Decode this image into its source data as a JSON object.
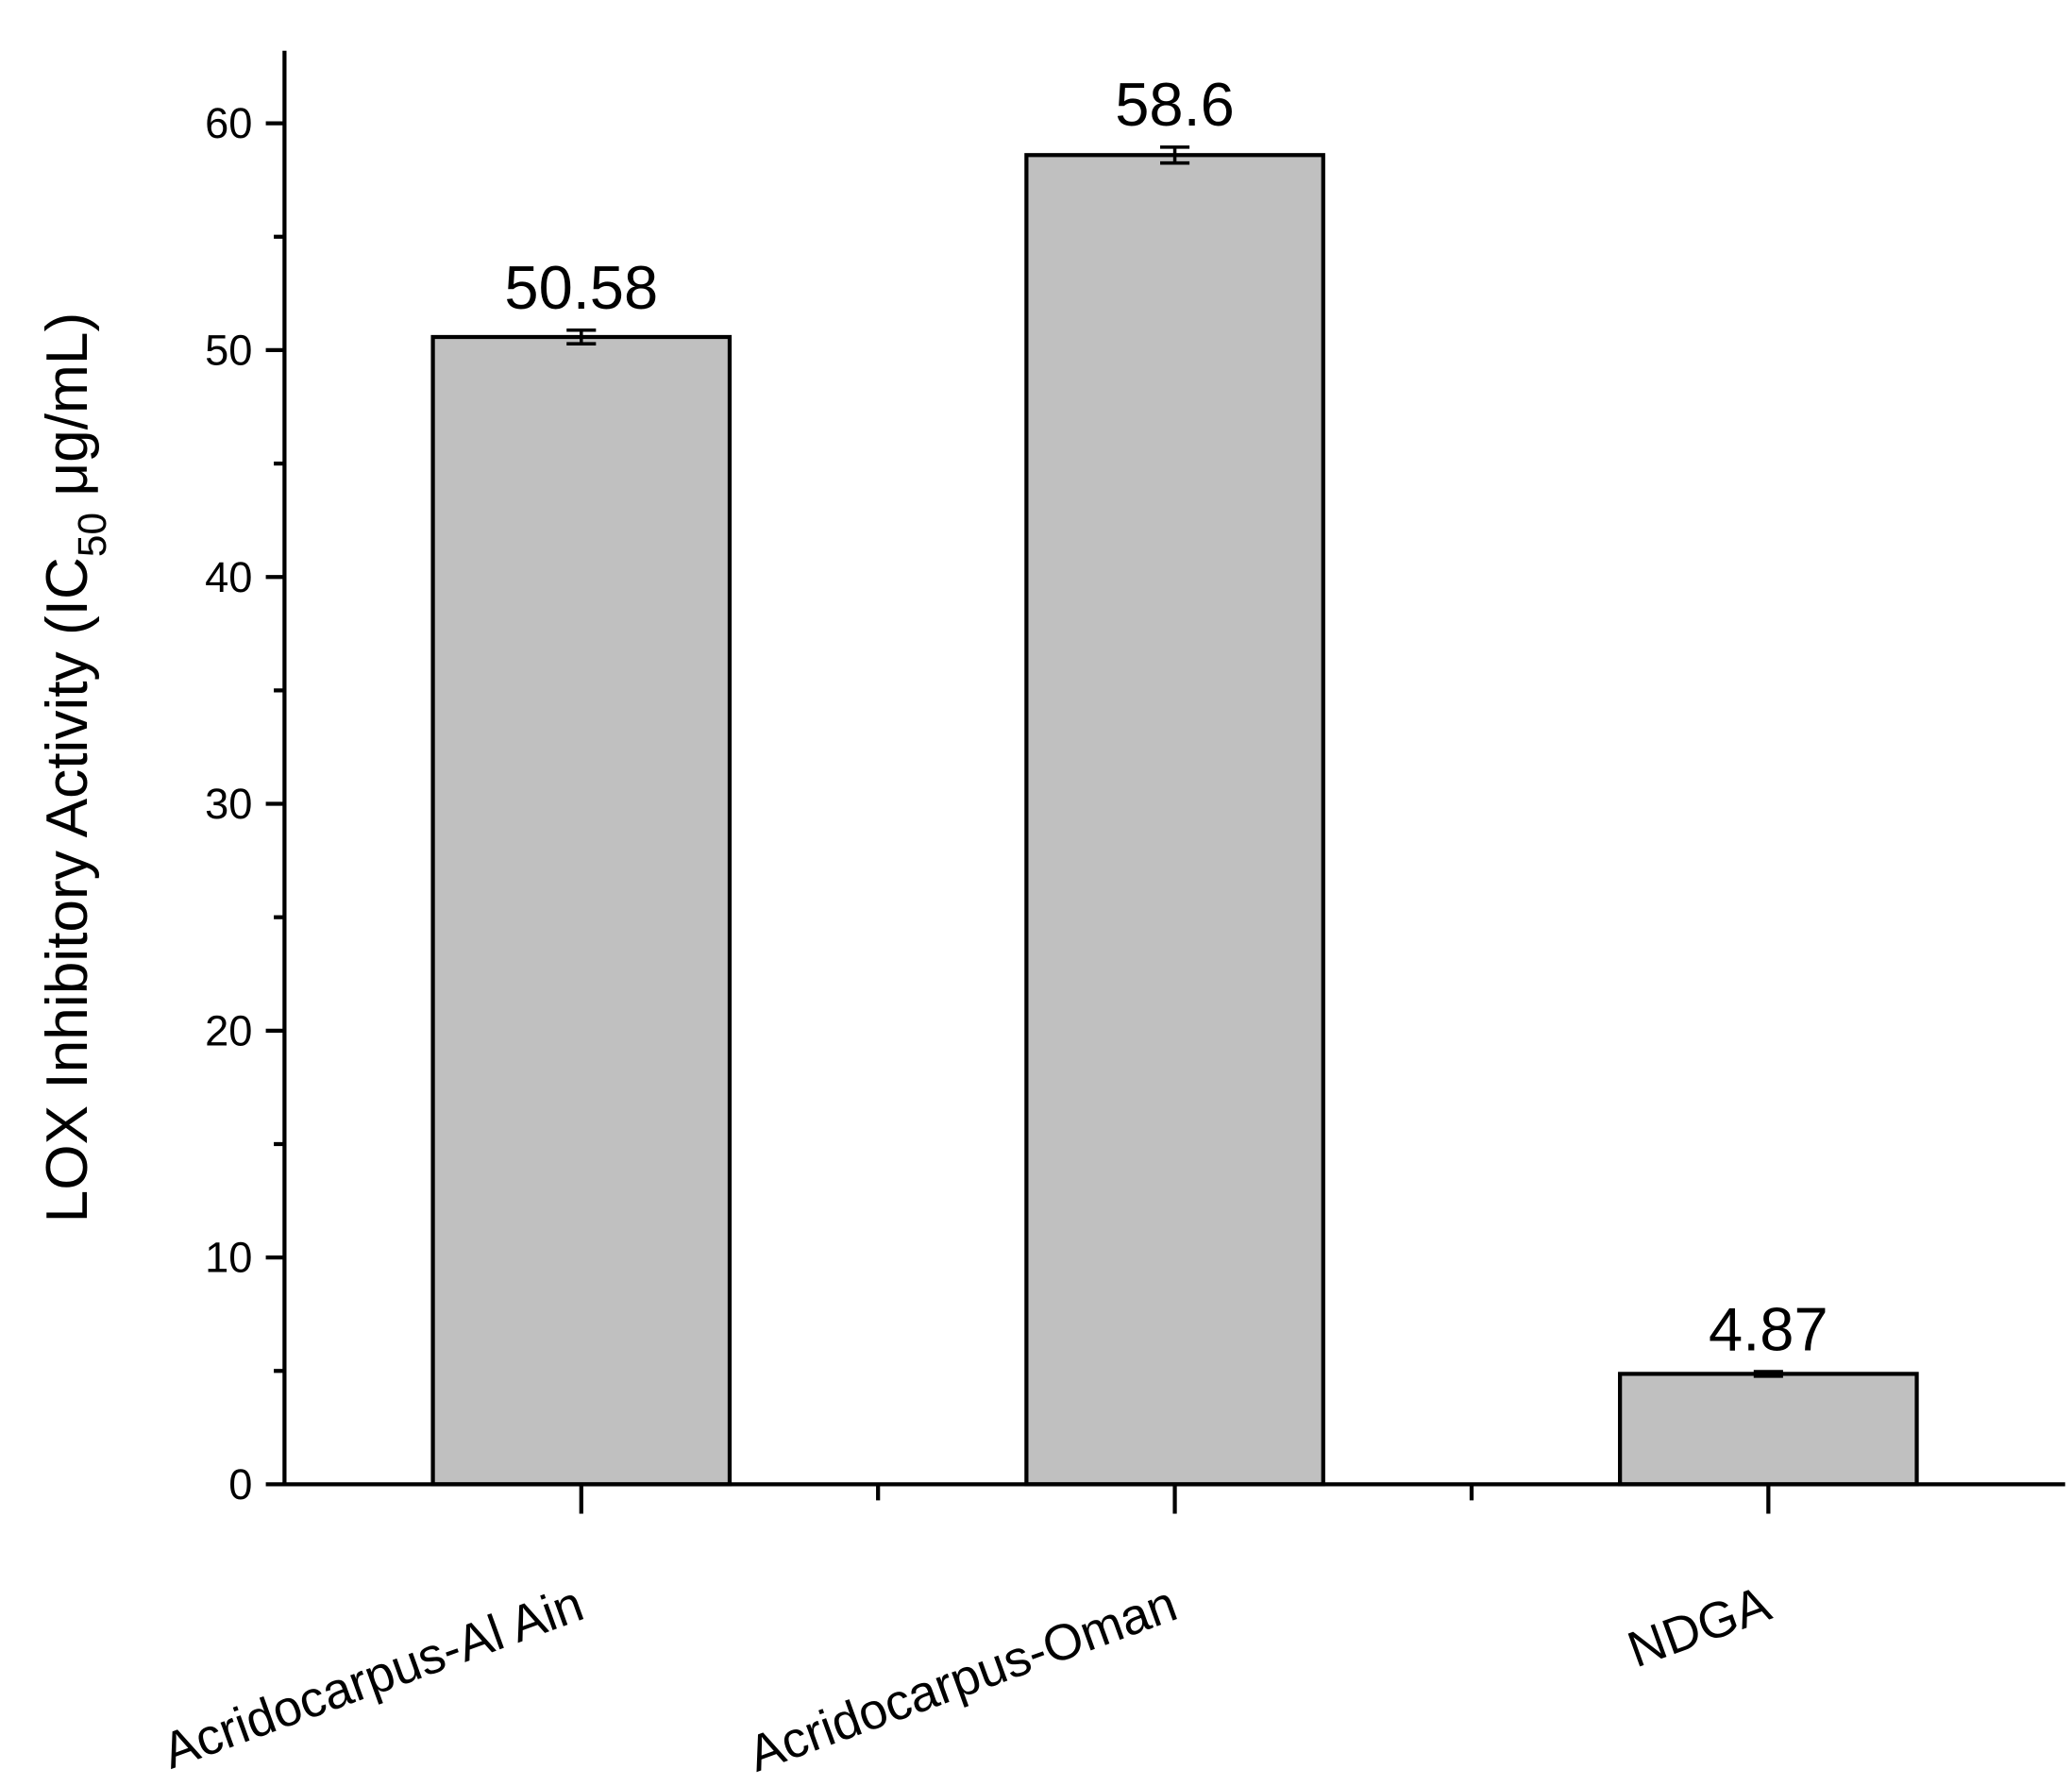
{
  "chart_data": {
    "type": "bar",
    "y_label": [
      "LOX Inhibitory Activity (IC",
      "50",
      " μg/mL)"
    ],
    "categories": [
      "Acridocarpus-Al Ain",
      "Acridocarpus-Oman",
      "NDGA"
    ],
    "values": [
      50.58,
      58.6,
      4.87
    ],
    "errors": [
      0.3,
      0.35,
      0.1
    ],
    "color": "#c0c0c0",
    "ylim": [
      0,
      63.2
    ],
    "yticks": [
      0,
      10,
      20,
      30,
      40,
      50,
      60
    ],
    "yminorticks": [
      5,
      15,
      25,
      35,
      45,
      55
    ]
  }
}
